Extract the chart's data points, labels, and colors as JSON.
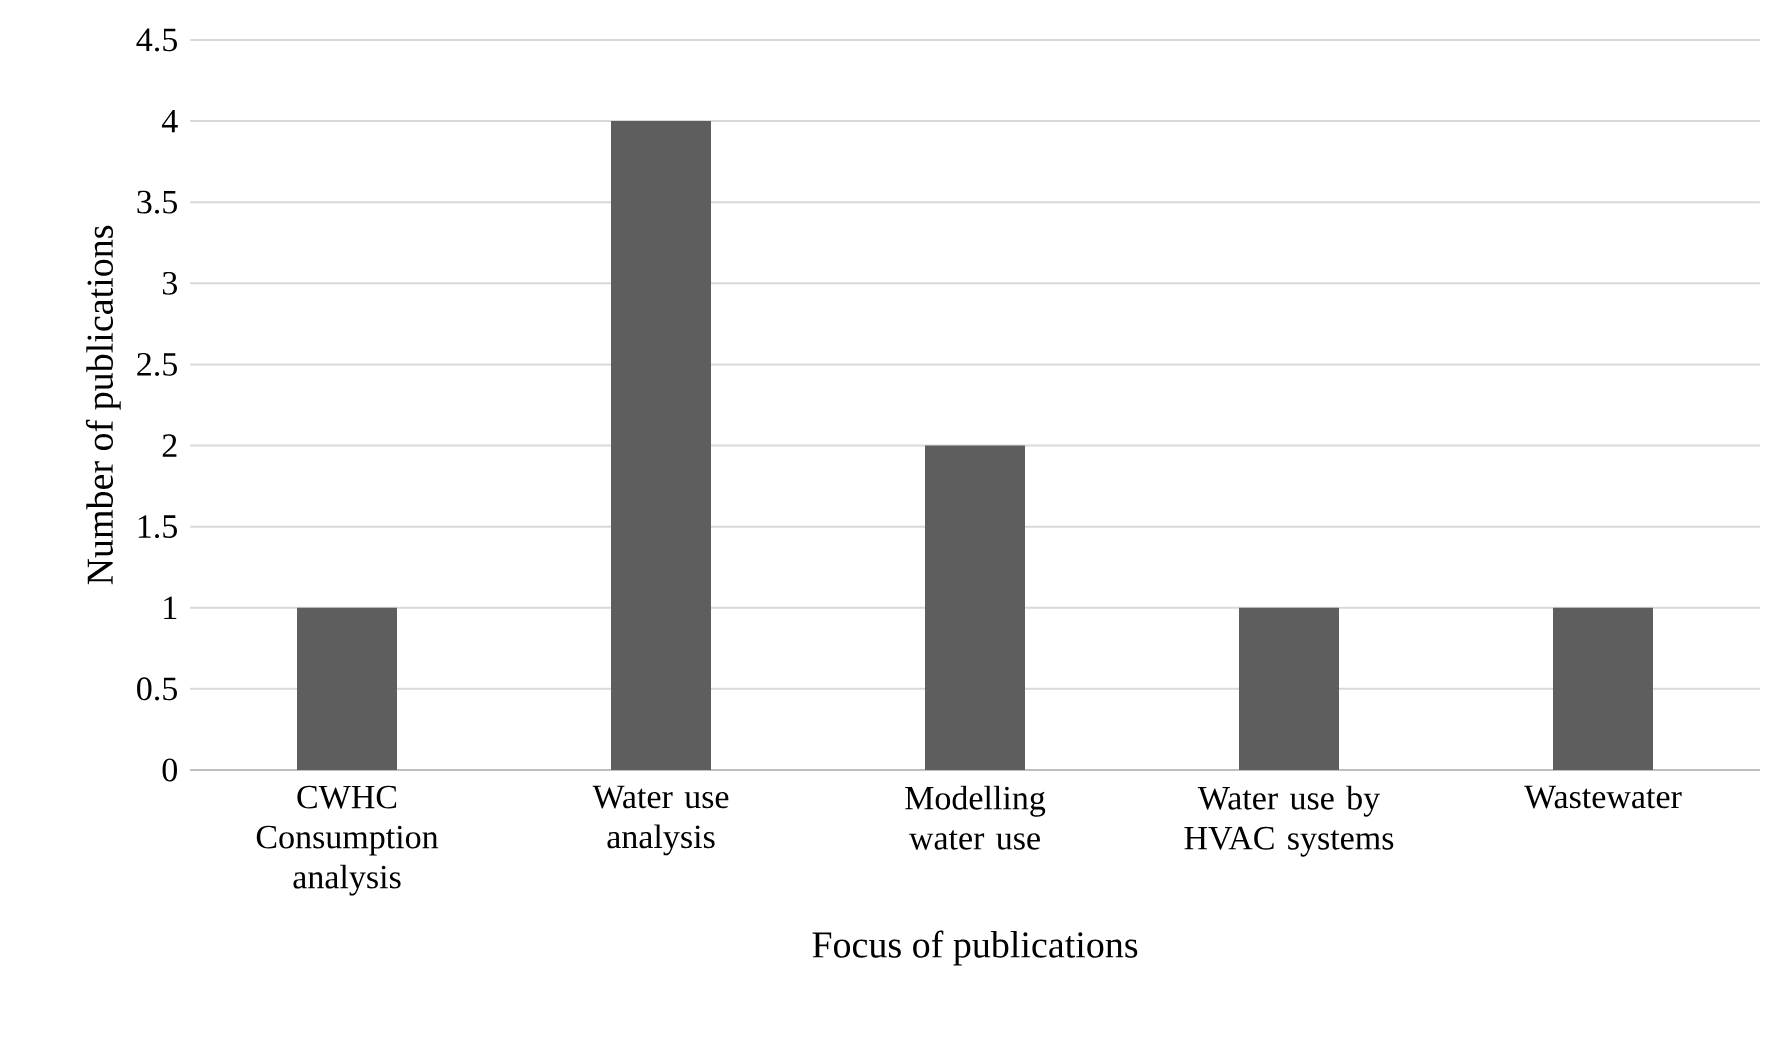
{
  "chart_data": {
    "type": "bar",
    "xlabel": "Focus of publications",
    "ylabel": "Number of publications",
    "categories": [
      "CWHC Consumption analysis",
      "Water use analysis",
      "Modelling water use",
      "Water use by HVAC systems",
      "Wastewater"
    ],
    "values": [
      1,
      4,
      2,
      1,
      1
    ],
    "color": "#5e5e5e",
    "ylim": [
      0,
      4.5
    ],
    "yticks": [
      0,
      0.5,
      1,
      1.5,
      2,
      2.5,
      3,
      3.5,
      4,
      4.5
    ],
    "grid": "y"
  }
}
